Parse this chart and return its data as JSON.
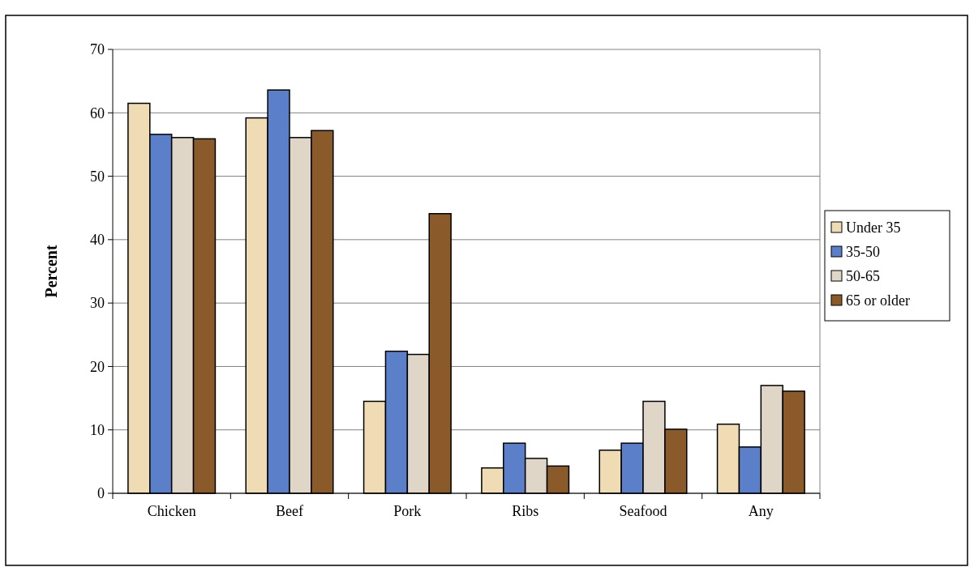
{
  "chart_data": {
    "type": "bar",
    "ylabel": "Percent",
    "categories": [
      "Chicken",
      "Beef",
      "Pork",
      "Ribs",
      "Seafood",
      "Any"
    ],
    "series": [
      {
        "name": "Under 35",
        "color": "#f0dcb4",
        "values": [
          61.5,
          59.2,
          14.5,
          4.0,
          6.8,
          10.9
        ]
      },
      {
        "name": "35-50",
        "color": "#5b7fc8",
        "values": [
          56.6,
          63.6,
          22.4,
          7.9,
          7.9,
          7.3
        ]
      },
      {
        "name": "50-65",
        "color": "#e0d6c8",
        "values": [
          56.1,
          56.1,
          21.9,
          5.5,
          14.5,
          17.0
        ]
      },
      {
        "name": "65 or older",
        "color": "#8b5a2b",
        "values": [
          55.9,
          57.2,
          44.1,
          4.3,
          10.1,
          16.1
        ]
      }
    ],
    "ylim": [
      0,
      70
    ],
    "yticks": [
      0,
      10,
      20,
      30,
      40,
      50,
      60,
      70
    ],
    "grid": "y",
    "legend": "right"
  }
}
